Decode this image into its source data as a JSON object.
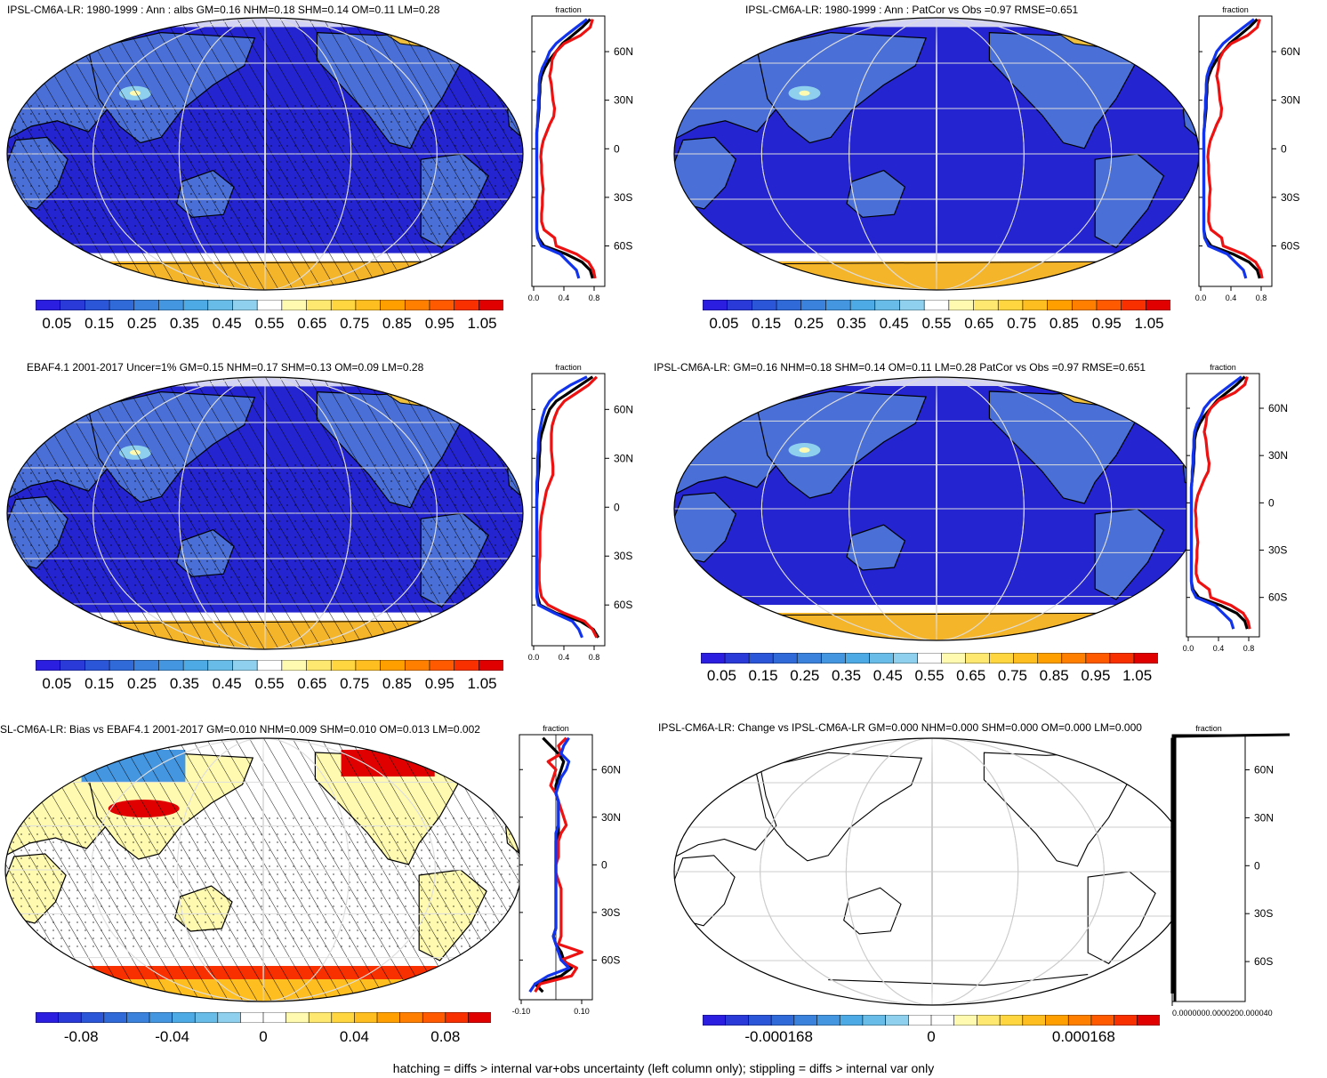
{
  "palette": {
    "sequential": [
      "#2b1ee0",
      "#2a3ad8",
      "#2b56d8",
      "#2f6ad8",
      "#3a82db",
      "#4596e0",
      "#4eaae4",
      "#68bde8",
      "#8fd0ee",
      "#ffffff",
      "#fffab0",
      "#ffe870",
      "#ffd640",
      "#ffbe20",
      "#ffa000",
      "#ff8000",
      "#ff5a00",
      "#f83000",
      "#e00000"
    ],
    "diverging": [
      "#2b1ee0",
      "#2a3ad8",
      "#2b56d8",
      "#2f6ad8",
      "#3a82db",
      "#4596e0",
      "#4eaae4",
      "#68bde8",
      "#8fd0ee",
      "#ffffff",
      "#ffffff",
      "#fffab0",
      "#ffe870",
      "#ffd640",
      "#ffbe20",
      "#ffa000",
      "#ff8000",
      "#ff5a00",
      "#f83000",
      "#e00000"
    ],
    "ocean": "#2424d0",
    "land": "#4a6fd6",
    "ice": "#f5b52a",
    "icecap": "#f0c040",
    "line_red": "#ee1111",
    "line_blue": "#1133ee",
    "line_black": "#000000"
  },
  "profile_axis": {
    "title": "fraction",
    "lat_ticks": [
      "60N",
      "30N",
      "0",
      "30S",
      "60S"
    ]
  },
  "panels": [
    {
      "id": "model-clim",
      "title": "IPSL-CM6A-LR: 1980-1999 : Ann : albs GM=0.16 NHM=0.18 SHM=0.14 OM=0.11 LM=0.28",
      "hatched": true,
      "colorbar_labels": [
        "0.05",
        "0.15",
        "0.25",
        "0.35",
        "0.45",
        "0.55",
        "0.65",
        "0.75",
        "0.85",
        "0.95",
        "1.05"
      ],
      "profile_xticks": [
        "0.0",
        "0.4",
        "0.8"
      ]
    },
    {
      "id": "model-patcor",
      "title": "IPSL-CM6A-LR: 1980-1999 : Ann : PatCor vs Obs =0.97 RMSE=0.651",
      "hatched": false,
      "colorbar_labels": [
        "0.05",
        "0.15",
        "0.25",
        "0.35",
        "0.45",
        "0.55",
        "0.65",
        "0.75",
        "0.85",
        "0.95",
        "1.05"
      ],
      "profile_xticks": [
        "0.0",
        "0.4",
        "0.8"
      ]
    },
    {
      "id": "obs-clim",
      "title": "EBAF4.1 2001-2017 Uncer=1% GM=0.15 NHM=0.17 SHM=0.13 OM=0.09 LM=0.28",
      "hatched": true,
      "colorbar_labels": [
        "0.05",
        "0.15",
        "0.25",
        "0.35",
        "0.45",
        "0.55",
        "0.65",
        "0.75",
        "0.85",
        "0.95",
        "1.05"
      ],
      "profile_xticks": [
        "0.0",
        "0.4",
        "0.8"
      ]
    },
    {
      "id": "model-summary",
      "title": "IPSL-CM6A-LR: GM=0.16 NHM=0.18 SHM=0.14 OM=0.11 LM=0.28 PatCor vs Obs =0.97 RMSE=0.651",
      "hatched": false,
      "colorbar_labels": [
        "0.05",
        "0.15",
        "0.25",
        "0.35",
        "0.45",
        "0.55",
        "0.65",
        "0.75",
        "0.85",
        "0.95",
        "1.05"
      ],
      "profile_xticks": [
        "0.0",
        "0.4",
        "0.8"
      ]
    },
    {
      "id": "bias",
      "title": "SL-CM6A-LR: Bias vs EBAF4.1 2001-2017 GM=0.010 NHM=0.009 SHM=0.010 OM=0.013 LM=0.002",
      "hatched": true,
      "colorbar_labels": [
        "-0.08",
        "-0.04",
        "0",
        "0.04",
        "0.08"
      ],
      "profile_xticks": [
        "-0.10",
        "0.10"
      ]
    },
    {
      "id": "change",
      "title": "IPSL-CM6A-LR: Change vs IPSL-CM6A-LR GM=0.000 NHM=0.000 SHM=0.000 OM=0.000 LM=0.000",
      "hatched": false,
      "colorbar_labels": [
        "-0.000168",
        "0",
        "0.000168"
      ],
      "profile_xticks": [
        "0.0000000.0000200.000040"
      ]
    }
  ],
  "chart_data": {
    "type": "line",
    "title": "",
    "xlabel": "fraction",
    "ylabel": "",
    "lat": [
      -80,
      -75,
      -70,
      -65,
      -60,
      -55,
      -50,
      -45,
      -40,
      -35,
      -30,
      -25,
      -20,
      -15,
      -10,
      -5,
      0,
      5,
      10,
      15,
      20,
      25,
      30,
      35,
      40,
      45,
      50,
      55,
      60,
      65,
      70,
      75,
      80
    ],
    "xlim": [
      0,
      0.9
    ],
    "ylim": [
      -85,
      82
    ],
    "series": [
      {
        "color": "#000000",
        "panel": "model-clim",
        "values": [
          0.75,
          0.72,
          0.62,
          0.42,
          0.15,
          0.08,
          0.06,
          0.06,
          0.06,
          0.06,
          0.06,
          0.06,
          0.06,
          0.06,
          0.06,
          0.06,
          0.06,
          0.06,
          0.06,
          0.07,
          0.08,
          0.09,
          0.09,
          0.1,
          0.1,
          0.12,
          0.16,
          0.22,
          0.3,
          0.38,
          0.5,
          0.62,
          0.72
        ]
      },
      {
        "color": "#ee1111",
        "panel": "model-clim",
        "values": [
          0.78,
          0.76,
          0.7,
          0.55,
          0.3,
          0.28,
          0.15,
          0.12,
          0.12,
          0.13,
          0.13,
          0.14,
          0.13,
          0.12,
          0.12,
          0.11,
          0.12,
          0.14,
          0.18,
          0.22,
          0.27,
          0.28,
          0.26,
          0.25,
          0.24,
          0.22,
          0.24,
          0.25,
          0.3,
          0.4,
          0.6,
          0.72,
          0.75
        ]
      },
      {
        "color": "#1133ee",
        "panel": "model-clim",
        "values": [
          0.58,
          0.55,
          0.45,
          0.35,
          0.12,
          0.07,
          0.06,
          0.06,
          0.06,
          0.06,
          0.06,
          0.06,
          0.06,
          0.06,
          0.06,
          0.06,
          0.06,
          0.06,
          0.06,
          0.07,
          0.07,
          0.08,
          0.08,
          0.09,
          0.09,
          0.1,
          0.13,
          0.18,
          0.22,
          0.3,
          0.42,
          0.55,
          0.68
        ]
      },
      {
        "color": "#000000",
        "panel": "model-patcor",
        "values": [
          0.75,
          0.72,
          0.62,
          0.42,
          0.15,
          0.08,
          0.06,
          0.06,
          0.06,
          0.06,
          0.06,
          0.06,
          0.06,
          0.06,
          0.06,
          0.06,
          0.06,
          0.06,
          0.06,
          0.07,
          0.08,
          0.09,
          0.09,
          0.1,
          0.1,
          0.12,
          0.16,
          0.22,
          0.3,
          0.38,
          0.5,
          0.62,
          0.72
        ]
      },
      {
        "color": "#ee1111",
        "panel": "model-patcor",
        "values": [
          0.78,
          0.76,
          0.7,
          0.55,
          0.3,
          0.28,
          0.15,
          0.12,
          0.12,
          0.13,
          0.13,
          0.14,
          0.13,
          0.12,
          0.12,
          0.11,
          0.12,
          0.14,
          0.18,
          0.22,
          0.27,
          0.28,
          0.26,
          0.25,
          0.24,
          0.22,
          0.24,
          0.25,
          0.3,
          0.4,
          0.6,
          0.72,
          0.75
        ]
      },
      {
        "color": "#1133ee",
        "panel": "model-patcor",
        "values": [
          0.58,
          0.55,
          0.45,
          0.35,
          0.12,
          0.07,
          0.06,
          0.06,
          0.06,
          0.06,
          0.06,
          0.06,
          0.06,
          0.06,
          0.06,
          0.06,
          0.06,
          0.06,
          0.06,
          0.07,
          0.07,
          0.08,
          0.08,
          0.09,
          0.09,
          0.1,
          0.13,
          0.18,
          0.22,
          0.3,
          0.42,
          0.55,
          0.68
        ]
      },
      {
        "color": "#000000",
        "panel": "obs-clim",
        "values": [
          0.82,
          0.76,
          0.6,
          0.3,
          0.1,
          0.07,
          0.06,
          0.06,
          0.06,
          0.06,
          0.06,
          0.06,
          0.06,
          0.06,
          0.06,
          0.06,
          0.06,
          0.06,
          0.07,
          0.07,
          0.08,
          0.09,
          0.09,
          0.1,
          0.1,
          0.12,
          0.15,
          0.18,
          0.22,
          0.3,
          0.45,
          0.6,
          0.75
        ]
      },
      {
        "color": "#ee1111",
        "panel": "obs-clim",
        "values": [
          0.8,
          0.75,
          0.65,
          0.4,
          0.2,
          0.12,
          0.1,
          0.09,
          0.09,
          0.09,
          0.1,
          0.1,
          0.1,
          0.1,
          0.11,
          0.12,
          0.14,
          0.16,
          0.18,
          0.22,
          0.26,
          0.26,
          0.25,
          0.24,
          0.24,
          0.24,
          0.25,
          0.28,
          0.32,
          0.4,
          0.55,
          0.7,
          0.8
        ]
      },
      {
        "color": "#1133ee",
        "panel": "obs-clim",
        "values": [
          0.62,
          0.58,
          0.5,
          0.28,
          0.08,
          0.06,
          0.06,
          0.06,
          0.06,
          0.06,
          0.06,
          0.06,
          0.06,
          0.06,
          0.06,
          0.06,
          0.06,
          0.06,
          0.06,
          0.06,
          0.07,
          0.07,
          0.07,
          0.08,
          0.08,
          0.09,
          0.11,
          0.13,
          0.16,
          0.22,
          0.32,
          0.48,
          0.68
        ]
      },
      {
        "color": "#000000",
        "panel": "model-summary",
        "values": [
          0.75,
          0.72,
          0.62,
          0.42,
          0.15,
          0.08,
          0.06,
          0.06,
          0.06,
          0.06,
          0.06,
          0.06,
          0.06,
          0.06,
          0.06,
          0.06,
          0.06,
          0.06,
          0.06,
          0.07,
          0.08,
          0.09,
          0.09,
          0.1,
          0.1,
          0.12,
          0.16,
          0.22,
          0.3,
          0.38,
          0.5,
          0.62,
          0.72
        ]
      },
      {
        "color": "#ee1111",
        "panel": "model-summary",
        "values": [
          0.78,
          0.76,
          0.7,
          0.55,
          0.3,
          0.28,
          0.15,
          0.12,
          0.12,
          0.13,
          0.13,
          0.14,
          0.13,
          0.12,
          0.12,
          0.11,
          0.12,
          0.14,
          0.18,
          0.22,
          0.27,
          0.28,
          0.26,
          0.25,
          0.24,
          0.22,
          0.24,
          0.25,
          0.3,
          0.4,
          0.6,
          0.72,
          0.75
        ]
      },
      {
        "color": "#1133ee",
        "panel": "model-summary",
        "values": [
          0.58,
          0.55,
          0.45,
          0.35,
          0.12,
          0.07,
          0.06,
          0.06,
          0.06,
          0.06,
          0.06,
          0.06,
          0.06,
          0.06,
          0.06,
          0.06,
          0.06,
          0.06,
          0.06,
          0.07,
          0.07,
          0.08,
          0.08,
          0.09,
          0.09,
          0.1,
          0.13,
          0.18,
          0.22,
          0.3,
          0.42,
          0.55,
          0.68
        ]
      },
      {
        "color": "#000000",
        "panel": "bias",
        "values": [
          -0.05,
          -0.08,
          0.02,
          0.06,
          0.03,
          0.02,
          0.0,
          -0.01,
          0.0,
          0.0,
          0.0,
          0.0,
          0.0,
          0.0,
          0.0,
          0.0,
          0.0,
          0.0,
          0.0,
          0.0,
          0.01,
          0.01,
          0.01,
          0.01,
          0.01,
          0.0,
          0.0,
          0.01,
          0.02,
          0.03,
          0.01,
          -0.02,
          -0.05
        ]
      },
      {
        "color": "#ee1111",
        "panel": "bias",
        "values": [
          -0.08,
          -0.06,
          0.06,
          0.08,
          0.02,
          0.1,
          0.01,
          0.02,
          0.02,
          0.02,
          0.02,
          0.02,
          0.02,
          0.02,
          0.01,
          0.0,
          0.0,
          0.01,
          0.01,
          0.01,
          0.02,
          0.04,
          0.03,
          0.02,
          0.01,
          0.0,
          -0.02,
          -0.01,
          0.0,
          -0.03,
          0.02,
          0.01,
          0.04
        ]
      },
      {
        "color": "#1133ee",
        "panel": "bias",
        "values": [
          -0.1,
          -0.08,
          -0.03,
          0.05,
          0.02,
          0.01,
          0.0,
          -0.01,
          0.0,
          0.0,
          0.0,
          0.0,
          0.0,
          0.0,
          0.0,
          0.0,
          0.0,
          0.0,
          0.0,
          0.0,
          0.0,
          0.01,
          0.01,
          0.01,
          0.01,
          0.0,
          0.01,
          0.02,
          0.04,
          0.05,
          0.02,
          0.03,
          0.05
        ]
      },
      {
        "color": "#000000",
        "panel": "change",
        "values": [
          0,
          0,
          0,
          0,
          0,
          0,
          0,
          0,
          0,
          0,
          0,
          0,
          0,
          0,
          0,
          0,
          0,
          0,
          0,
          0,
          0,
          0,
          0,
          0,
          0,
          0,
          0,
          0,
          0,
          0,
          0,
          0,
          0
        ]
      }
    ]
  },
  "footer": "hatching = diffs > internal var+obs uncertainty (left column only); stippling = diffs > internal var only"
}
